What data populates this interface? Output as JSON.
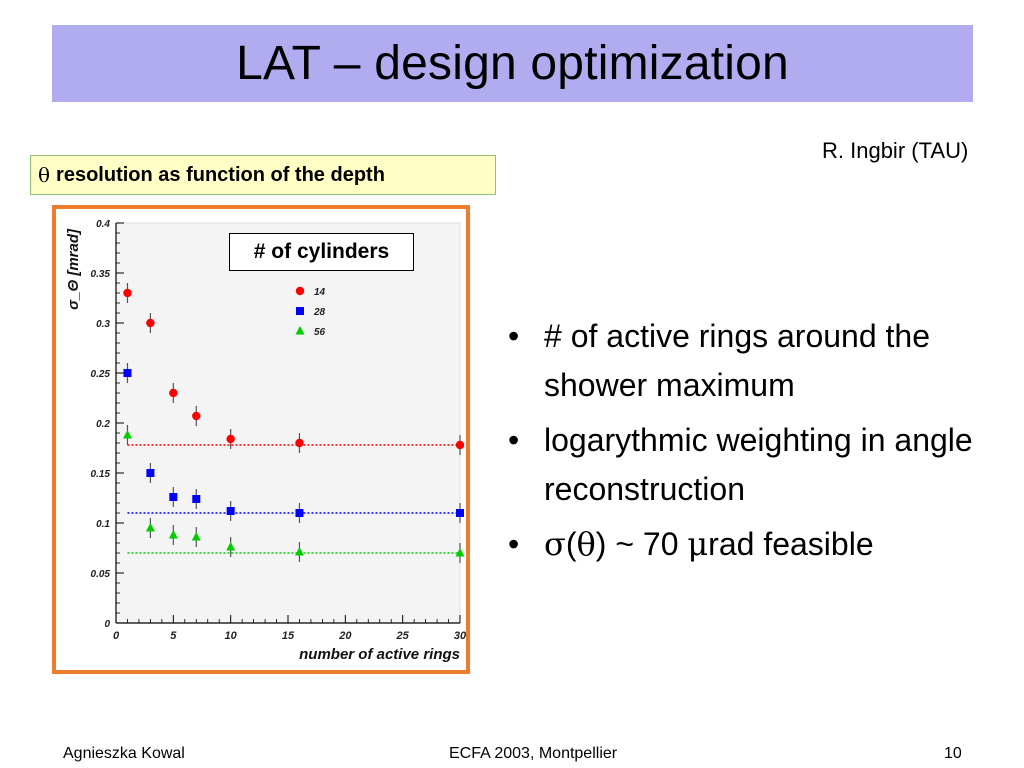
{
  "slide": {
    "title": "LAT – design optimization",
    "author": "R. Ingbir (TAU)",
    "caption": {
      "symbol": "θ",
      "text": "resolution as function of the depth"
    },
    "legend_title": "# of cylinders",
    "bullets": [
      {
        "bullet": "•",
        "text": "# of active rings around the shower maximum"
      },
      {
        "bullet": "•",
        "text": "logarythmic weighting in angle reconstruction"
      },
      {
        "bullet": "•",
        "sigma": "σ",
        "open": "(",
        "theta": "θ",
        "mid": ") ~ 70 ",
        "mu": "μ",
        "tail": "rad feasible"
      }
    ],
    "footer": {
      "left": "Agnieszka Kowal",
      "center": "ECFA 2003, Montpellier",
      "right": "10"
    }
  },
  "colors": {
    "title_bg": "#b1acf0",
    "caption_bg": "#ffffc6",
    "frame": "#ee7c2e",
    "s14": "#ff0000",
    "s28": "#0000ff",
    "s56": "#00cc00"
  },
  "chart_data": {
    "type": "scatter",
    "xlabel": "number of active rings",
    "ylabel": "σ_Θ [mrad]",
    "xlim": [
      0,
      30
    ],
    "ylim": [
      0,
      0.4
    ],
    "xticks": [
      0,
      5,
      10,
      15,
      20,
      25,
      30
    ],
    "yticks": [
      0,
      0.05,
      0.1,
      0.15,
      0.2,
      0.25,
      0.3,
      0.35,
      0.4
    ],
    "ytick_labels": [
      "0",
      "0.05",
      "0.1",
      "0.15",
      "0.2",
      "0.25",
      "0.3",
      "0.35",
      "0.4"
    ],
    "legend_title": "# of cylinders",
    "series": [
      {
        "name": "14",
        "marker": "circle",
        "color": "#ff0000",
        "x": [
          1,
          3,
          5,
          7,
          10,
          16,
          30
        ],
        "y": [
          0.33,
          0.3,
          0.23,
          0.207,
          0.184,
          0.18,
          0.178
        ],
        "fit": 0.178
      },
      {
        "name": "28",
        "marker": "square",
        "color": "#0000ff",
        "x": [
          1,
          3,
          5,
          7,
          10,
          16,
          30
        ],
        "y": [
          0.25,
          0.15,
          0.126,
          0.124,
          0.112,
          0.11,
          0.11
        ],
        "fit": 0.11
      },
      {
        "name": "56",
        "marker": "triangle",
        "color": "#00cc00",
        "x": [
          1,
          3,
          5,
          7,
          10,
          16,
          30
        ],
        "y": [
          0.188,
          0.095,
          0.088,
          0.086,
          0.076,
          0.071,
          0.07
        ],
        "fit": 0.07
      }
    ]
  }
}
